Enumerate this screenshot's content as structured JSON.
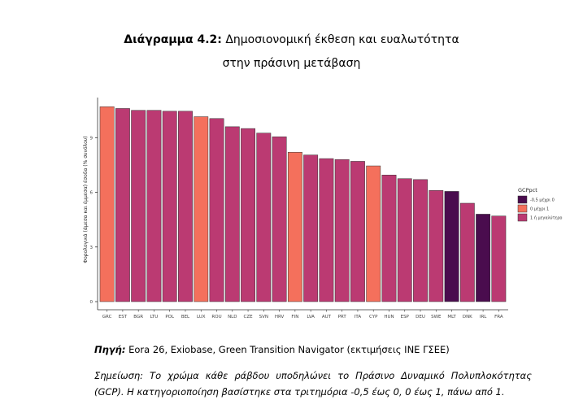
{
  "title": {
    "prefix": "Διάγραμμα 4.2:",
    "line1": "Δημοσιονομική έκθεση και ευαλωτότητα",
    "line2": "στην πράσινη μετάβαση"
  },
  "source": {
    "label": "Πηγή:",
    "text": "Eora 26, Exiobase, Green Transition Navigator (εκτιμήσεις ΙΝΕ ΓΣΕΕ)"
  },
  "note": {
    "text": "Σημείωση: Το χρώμα κάθε ράβδου υποδηλώνει το Πράσινο Δυναμικό Πολυπλοκότητας (GCP). Η κατηγοριοποίηση βασίστηκε στα τριτημόρια -0,5 έως 0, 0 έως 1, πάνω από 1."
  },
  "chart_data": {
    "type": "bar",
    "ylabel": "Φορολογικά (άμεσα και έμμεσα) έσοδα (% συνόλου)",
    "xlabel": "",
    "ylim": [
      0,
      11.2
    ],
    "yticks": [
      0,
      3,
      6,
      9
    ],
    "grid": false,
    "legend": {
      "title": "GCPpct",
      "position": "right",
      "entries": [
        {
          "label": "-0,5 μέχρι 0",
          "color": "#4a0c4e"
        },
        {
          "label": "0 μέχρι 1",
          "color": "#f4705c"
        },
        {
          "label": "1 ή μεγαλύτερο",
          "color": "#bb3a72"
        }
      ]
    },
    "categories": [
      "GRC",
      "EST",
      "BGR",
      "LTU",
      "POL",
      "BEL",
      "LUX",
      "ROU",
      "NLD",
      "CZE",
      "SVN",
      "HRV",
      "FIN",
      "LVA",
      "AUT",
      "PRT",
      "ITA",
      "CYP",
      "HUN",
      "ESP",
      "DEU",
      "SWE",
      "MLT",
      "DNK",
      "IRL",
      "FRA"
    ],
    "values": [
      10.7,
      10.6,
      10.5,
      10.5,
      10.45,
      10.45,
      10.15,
      10.05,
      9.6,
      9.5,
      9.25,
      9.05,
      8.2,
      8.05,
      7.85,
      7.8,
      7.7,
      7.45,
      6.95,
      6.75,
      6.7,
      6.1,
      6.05,
      5.4,
      4.8,
      4.7
    ],
    "groups": [
      "0 μέχρι 1",
      "1 ή μεγαλύτερο",
      "1 ή μεγαλύτερο",
      "1 ή μεγαλύτερο",
      "1 ή μεγαλύτερο",
      "1 ή μεγαλύτερο",
      "0 μέχρι 1",
      "1 ή μεγαλύτερο",
      "1 ή μεγαλύτερο",
      "1 ή μεγαλύτερο",
      "1 ή μεγαλύτερο",
      "1 ή μεγαλύτερο",
      "0 μέχρι 1",
      "1 ή μεγαλύτερο",
      "1 ή μεγαλύτερο",
      "1 ή μεγαλύτερο",
      "1 ή μεγαλύτερο",
      "0 μέχρι 1",
      "1 ή μεγαλύτερο",
      "1 ή μεγαλύτερο",
      "1 ή μεγαλύτερο",
      "1 ή μεγαλύτερο",
      "-0,5 μέχρι 0",
      "1 ή μεγαλύτερο",
      "-0,5 μέχρι 0",
      "1 ή μεγαλύτερο"
    ]
  }
}
